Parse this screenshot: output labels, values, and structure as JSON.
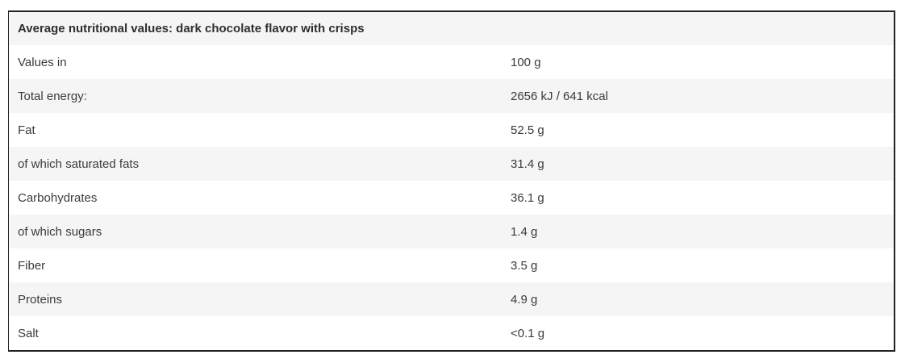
{
  "table": {
    "title": "Average nutritional values: dark chocolate flavor with crisps",
    "rows": [
      {
        "label": "Values in",
        "value": "100 g"
      },
      {
        "label": "Total energy:",
        "value": "2656 kJ / 641 kcal"
      },
      {
        "label": "Fat",
        "value": "52.5 g"
      },
      {
        "label": "of which saturated fats",
        "value": "31.4 g"
      },
      {
        "label": "Carbohydrates",
        "value": "36.1 g"
      },
      {
        "label": "of which sugars",
        "value": "1.4 g"
      },
      {
        "label": "Fiber",
        "value": "3.5 g"
      },
      {
        "label": "Proteins",
        "value": "4.9 g"
      },
      {
        "label": "Salt",
        "value": "<0.1 g"
      }
    ],
    "colors": {
      "border": "#222222",
      "row_bg": "#ffffff",
      "row_alt_bg": "#f5f5f5",
      "text": "#3b3b3b",
      "title_text": "#2e2e2e"
    }
  }
}
